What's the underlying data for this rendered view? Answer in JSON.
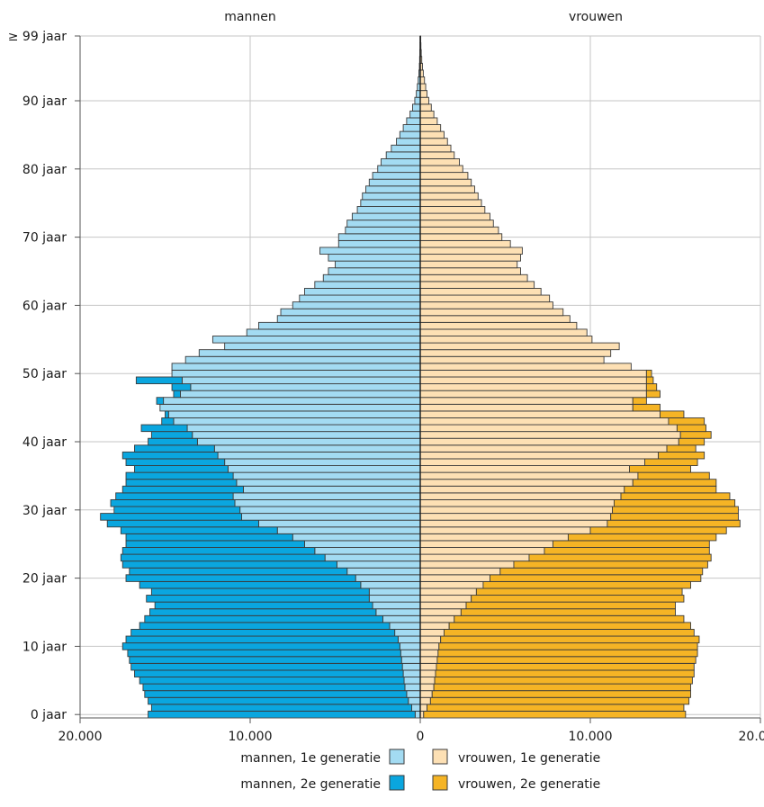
{
  "colors": {
    "men_1e": "#a3dbf2",
    "men_2e": "#0aa6df",
    "women_1e": "#fde0b4",
    "women_2e": "#f5b425",
    "bar_stroke": "#3a3a3a",
    "grid": "#c6c6c6",
    "axis": "#555555"
  },
  "chart_data": {
    "type": "bar",
    "orientation": "horizontal-population-pyramid",
    "header": {
      "left": "mannen",
      "right": "vrouwen"
    },
    "y_ticks": [
      {
        "age": 0,
        "label": "0 jaar"
      },
      {
        "age": 10,
        "label": "10 jaar"
      },
      {
        "age": 20,
        "label": "20 jaar"
      },
      {
        "age": 30,
        "label": "30 jaar"
      },
      {
        "age": 40,
        "label": "40 jaar"
      },
      {
        "age": 50,
        "label": "50 jaar"
      },
      {
        "age": 60,
        "label": "60 jaar"
      },
      {
        "age": 70,
        "label": "70 jaar"
      },
      {
        "age": 80,
        "label": "80 jaar"
      },
      {
        "age": 90,
        "label": "90 jaar"
      },
      {
        "age": 99,
        "label": "≥ 99 jaar"
      }
    ],
    "x_ticks": [
      {
        "value": -20000,
        "label": "20.000"
      },
      {
        "value": -10000,
        "label": "10.000"
      },
      {
        "value": 0,
        "label": "0"
      },
      {
        "value": 10000,
        "label": "10.000"
      },
      {
        "value": 20000,
        "label": "20.000"
      }
    ],
    "xlim": [
      -20000,
      20000
    ],
    "ages": [
      0,
      1,
      2,
      3,
      4,
      5,
      6,
      7,
      8,
      9,
      10,
      11,
      12,
      13,
      14,
      15,
      16,
      17,
      18,
      19,
      20,
      21,
      22,
      23,
      24,
      25,
      26,
      27,
      28,
      29,
      30,
      31,
      32,
      33,
      34,
      35,
      36,
      37,
      38,
      39,
      40,
      41,
      42,
      43,
      44,
      45,
      46,
      47,
      48,
      49,
      50,
      51,
      52,
      53,
      54,
      55,
      56,
      57,
      58,
      59,
      60,
      61,
      62,
      63,
      64,
      65,
      66,
      67,
      68,
      69,
      70,
      71,
      72,
      73,
      74,
      75,
      76,
      77,
      78,
      79,
      80,
      81,
      82,
      83,
      84,
      85,
      86,
      87,
      88,
      89,
      90,
      91,
      92,
      93,
      94,
      95,
      96,
      97,
      98,
      99
    ],
    "series": [
      {
        "name": "mannen, 1e generatie",
        "side": "left",
        "values": [
          300,
          500,
          700,
          800,
          900,
          950,
          1000,
          1050,
          1100,
          1150,
          1200,
          1300,
          1500,
          1800,
          2200,
          2600,
          2800,
          3000,
          3000,
          3500,
          3800,
          4300,
          4900,
          5600,
          6200,
          6800,
          7500,
          8400,
          9500,
          10500,
          10600,
          10900,
          11000,
          10400,
          10800,
          11000,
          11300,
          11500,
          11900,
          12100,
          13100,
          13400,
          13700,
          14500,
          14800,
          15300,
          15100,
          14100,
          13500,
          14000,
          14600,
          14600,
          13800,
          13000,
          11500,
          12200,
          10200,
          9500,
          8400,
          8200,
          7500,
          7100,
          6800,
          6200,
          5700,
          5400,
          5000,
          5400,
          5900,
          4800,
          4800,
          4400,
          4300,
          4000,
          3700,
          3500,
          3400,
          3200,
          3000,
          2800,
          2500,
          2300,
          2000,
          1700,
          1400,
          1200,
          1000,
          800,
          600,
          450,
          320,
          230,
          170,
          120,
          80,
          50,
          35,
          20,
          10,
          8
        ],
        "totals_men_all": [
          16000,
          15800,
          16000,
          16200,
          16300,
          16500,
          16800,
          17000,
          17100,
          17200,
          17500,
          17300,
          17000,
          16500,
          16200,
          15900,
          15600,
          16100,
          15800,
          16500,
          17300,
          17100,
          17500,
          17600,
          17500,
          17300,
          17300,
          17600,
          18400,
          18800,
          18000,
          18200,
          17900,
          17500,
          17300,
          17300,
          16800,
          17300,
          17500,
          16800,
          16000,
          15800,
          16400,
          15200,
          15000,
          15200,
          15500,
          14500,
          14600,
          16700,
          14600,
          14400,
          13800,
          13000,
          11500,
          12200,
          10200,
          9500,
          8400,
          8200,
          7500,
          7100,
          6800,
          6200,
          5700,
          5400,
          5000,
          5400,
          5900,
          4800,
          4800,
          4400,
          4300,
          4000,
          3700,
          3500,
          3400,
          3200,
          3000,
          2800,
          2500,
          2300,
          2000,
          1700,
          1400,
          1200,
          1000,
          800,
          600,
          450,
          320,
          230,
          170,
          120,
          80,
          50,
          35,
          20,
          10,
          8
        ]
      },
      {
        "name": "mannen, 2e generatie",
        "side": "left",
        "values": [
          15700,
          15300,
          15300,
          15400,
          15400,
          15550,
          15800,
          15950,
          16000,
          16050,
          16300,
          16000,
          15500,
          14700,
          14000,
          13300,
          12800,
          13100,
          12800,
          13000,
          13500,
          12800,
          12600,
          12000,
          11300,
          10500,
          9800,
          9200,
          8900,
          8300,
          7400,
          7300,
          6900,
          7100,
          6500,
          6300,
          5500,
          5800,
          5600,
          4700,
          2900,
          2400,
          2700,
          700,
          200,
          -100,
          400,
          400,
          1100,
          2700,
          0,
          -200,
          0,
          0,
          0,
          0,
          0,
          0,
          0,
          0,
          0,
          0,
          0,
          0,
          0,
          0,
          0,
          0,
          0,
          0,
          0,
          0,
          0,
          0,
          0,
          0,
          0,
          0,
          0,
          0,
          0,
          0,
          0,
          0,
          0,
          0,
          0,
          0,
          0,
          0,
          0,
          0,
          0,
          0,
          0,
          0,
          0,
          0,
          0,
          0
        ]
      },
      {
        "name": "vrouwen, 1e generatie",
        "side": "right",
        "values": [
          200,
          400,
          600,
          700,
          800,
          850,
          900,
          950,
          1000,
          1050,
          1100,
          1200,
          1400,
          1700,
          2000,
          2400,
          2700,
          3000,
          3300,
          3700,
          4100,
          4700,
          5500,
          6400,
          7300,
          7800,
          8700,
          10000,
          11000,
          11200,
          11300,
          11400,
          11800,
          12000,
          12500,
          12800,
          12300,
          13200,
          14000,
          14500,
          15200,
          15300,
          15100,
          14600,
          14100,
          12500,
          12500,
          13300,
          13300,
          13300,
          13300,
          12400,
          10800,
          11200,
          11700,
          10100,
          9800,
          9200,
          8800,
          8400,
          7800,
          7600,
          7100,
          6700,
          6300,
          5900,
          5700,
          5900,
          6000,
          5300,
          4800,
          4600,
          4300,
          4100,
          3800,
          3600,
          3400,
          3200,
          3000,
          2800,
          2500,
          2300,
          2000,
          1800,
          1600,
          1400,
          1200,
          1000,
          800,
          650,
          500,
          400,
          320,
          250,
          180,
          130,
          90,
          60,
          40,
          30
        ],
        "totals_women_all": [
          15600,
          15500,
          15800,
          15900,
          15900,
          16000,
          16100,
          16100,
          16200,
          16300,
          16300,
          16400,
          16100,
          15900,
          15500,
          15000,
          15000,
          15500,
          15400,
          15900,
          16500,
          16600,
          16900,
          17100,
          17000,
          17000,
          17400,
          18000,
          18800,
          18700,
          18700,
          18500,
          18200,
          17400,
          17400,
          17000,
          15900,
          16300,
          16700,
          16200,
          16700,
          17100,
          16800,
          16700,
          15500,
          14100,
          13300,
          14100,
          13900,
          13700,
          13600,
          12400,
          10800,
          11200,
          11700,
          10100,
          9800,
          9200,
          8800,
          8400,
          7800,
          7600,
          7100,
          6700,
          6300,
          5900,
          5700,
          5900,
          6000,
          5300,
          4800,
          4600,
          4300,
          4100,
          3800,
          3600,
          3400,
          3200,
          3000,
          2800,
          2500,
          2300,
          2000,
          1800,
          1600,
          1400,
          1200,
          1000,
          800,
          650,
          500,
          400,
          320,
          250,
          180,
          130,
          90,
          60,
          40,
          30
        ]
      },
      {
        "name": "vrouwen, 2e generatie",
        "side": "right",
        "values": [
          15400,
          15100,
          15200,
          15200,
          15100,
          15150,
          15200,
          15150,
          15200,
          15250,
          15200,
          15200,
          14700,
          14200,
          13500,
          12600,
          12300,
          12500,
          12100,
          12200,
          12400,
          11900,
          11400,
          10700,
          9700,
          9200,
          8700,
          8000,
          7800,
          7500,
          7400,
          7100,
          6400,
          5400,
          4900,
          4200,
          3600,
          3100,
          2700,
          1700,
          1500,
          1800,
          1700,
          2100,
          1400,
          1600,
          800,
          800,
          600,
          400,
          300,
          0,
          0,
          0,
          0,
          0,
          0,
          0,
          0,
          0,
          0,
          0,
          0,
          0,
          0,
          0,
          0,
          0,
          0,
          0,
          0,
          0,
          0,
          0,
          0,
          0,
          0,
          0,
          0,
          0,
          0,
          0,
          0,
          0,
          0,
          0,
          0,
          0,
          0,
          0,
          0,
          0,
          0,
          0,
          0,
          0,
          0,
          0,
          0,
          0
        ]
      }
    ],
    "legend": [
      {
        "label": "mannen, 1e generatie",
        "color_key": "men_1e",
        "position": "left"
      },
      {
        "label": "vrouwen, 1e generatie",
        "color_key": "women_1e",
        "position": "right"
      },
      {
        "label": "mannen, 2e generatie",
        "color_key": "men_2e",
        "position": "left"
      },
      {
        "label": "vrouwen, 2e generatie",
        "color_key": "women_2e",
        "position": "right"
      }
    ],
    "legend_placement": "bottom",
    "grid": true
  }
}
